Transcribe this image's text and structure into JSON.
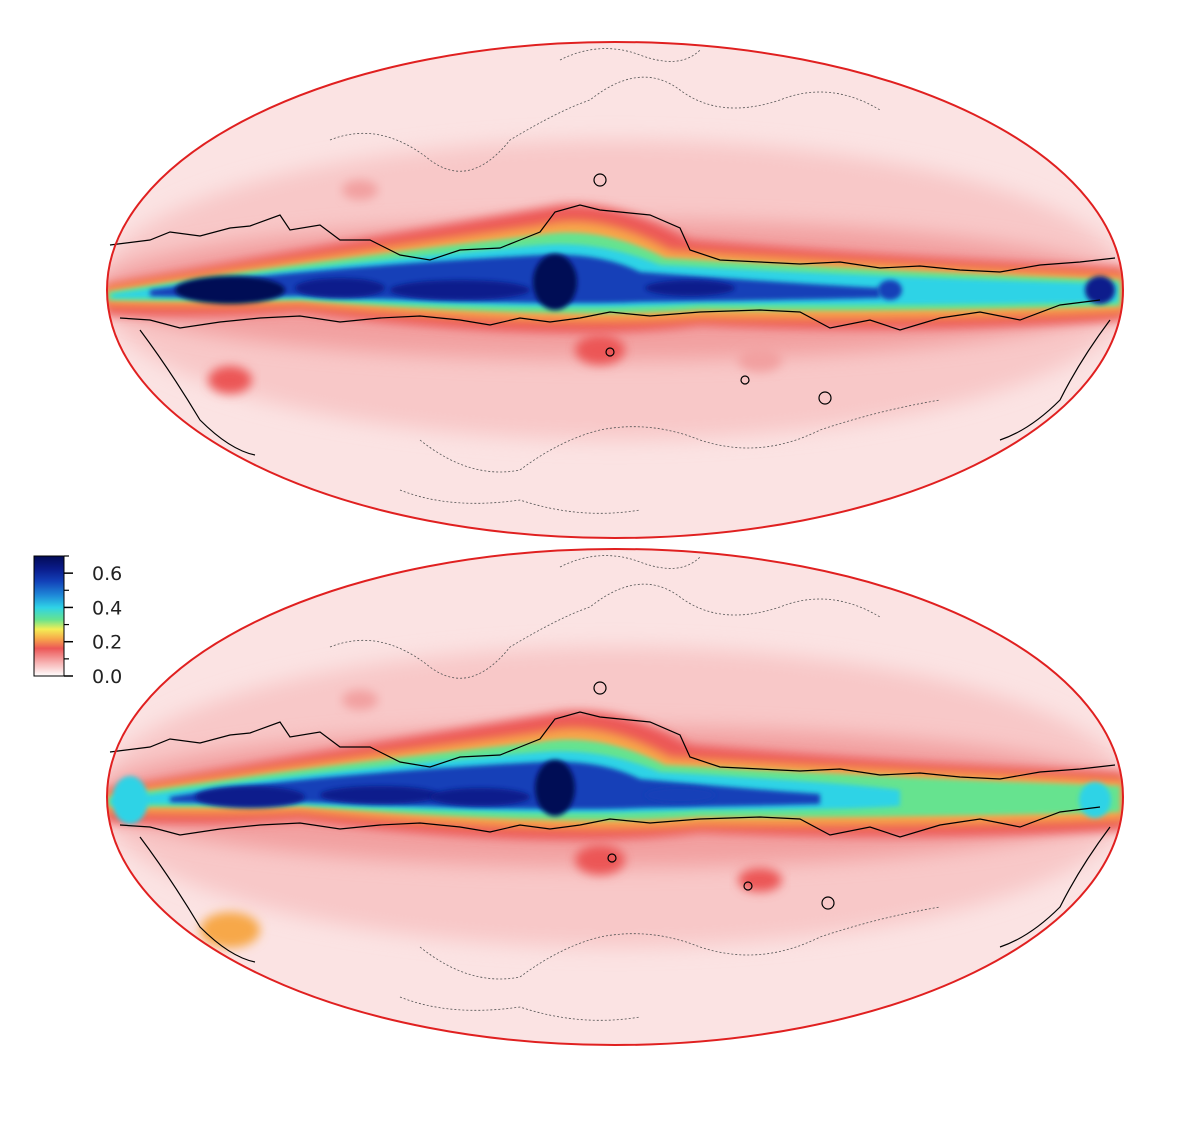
{
  "chart_data": {
    "type": "heatmap",
    "projection": "mollweide",
    "title": "",
    "xlabel": "",
    "ylabel": "",
    "grid": false,
    "colorbar": {
      "placement": "left-middle",
      "range": [
        0.0,
        0.7
      ],
      "ticks": [
        0.0,
        0.2,
        0.4,
        0.6
      ],
      "tick_labels": [
        "0.0",
        "0.2",
        "0.4",
        "0.6"
      ],
      "minor_ticks": [
        0.1,
        0.3,
        0.5,
        0.7
      ],
      "colormap": [
        {
          "v": 0.0,
          "color": "#ffffff"
        },
        {
          "v": 0.08,
          "color": "#f7b3b3"
        },
        {
          "v": 0.16,
          "color": "#ec5757"
        },
        {
          "v": 0.22,
          "color": "#f7a84a"
        },
        {
          "v": 0.27,
          "color": "#f3ee55"
        },
        {
          "v": 0.33,
          "color": "#66e38f"
        },
        {
          "v": 0.4,
          "color": "#2fd3e6"
        },
        {
          "v": 0.47,
          "color": "#1f8ad9"
        },
        {
          "v": 0.55,
          "color": "#1240b8"
        },
        {
          "v": 0.62,
          "color": "#0a1c8c"
        },
        {
          "v": 0.7,
          "color": "#020a55"
        }
      ]
    },
    "panels": [
      {
        "name": "top-map",
        "background_value": 0.06,
        "plane_peak_value": 0.68,
        "outline_color": "#e02020",
        "contour_color": "#000000"
      },
      {
        "name": "bottom-map",
        "background_value": 0.06,
        "plane_peak_value": 0.66,
        "outline_color": "#e02020",
        "contour_color": "#000000"
      }
    ]
  }
}
